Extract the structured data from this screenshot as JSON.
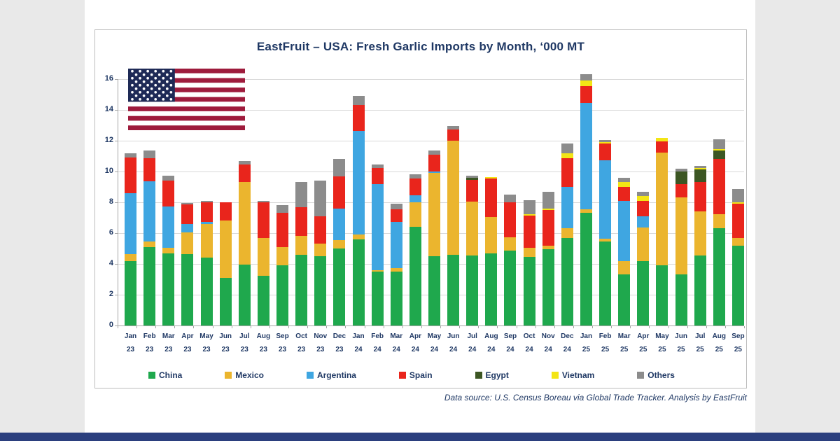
{
  "title": "EastFruit – USA: Fresh Garlic Imports by Month, ‘000 MT",
  "footer": "Data source: U.S. Census Boreau via Global Trade Tracker. Analysis by EastFruit",
  "colors": {
    "title_text": "#1F3864",
    "axis_text": "#1F3864",
    "gridline": "#D8D8D8",
    "frame_border": "#BDBDBD",
    "page_side": "#E9E9E9",
    "canvas": "#FFFFFF",
    "bottom_band": "#2B3F7E",
    "flag_red": "#9E1B3C",
    "flag_canton": "#1E2A56"
  },
  "chart_data": {
    "type": "bar",
    "stacked": true,
    "title": "EastFruit – USA: Fresh Garlic Imports by Month, ‘000 MT",
    "xlabel": "",
    "ylabel": "",
    "ylim": [
      0,
      16.5
    ],
    "y_ticks": [
      0,
      2,
      4,
      6,
      8,
      10,
      12,
      14,
      16
    ],
    "grid": true,
    "legend_position": "bottom",
    "categories": [
      "Jan 23",
      "Feb 23",
      "Mar 23",
      "Apr 23",
      "May 23",
      "Jun 23",
      "Jul 23",
      "Aug 23",
      "Sep 23",
      "Oct 23",
      "Nov 23",
      "Dec 23",
      "Jan 24",
      "Feb 24",
      "Mar 24",
      "Apr 24",
      "May 24",
      "Jun 24",
      "Jul 24",
      "Aug 24",
      "Sep 24",
      "Oct 24",
      "Nov 24",
      "Dec 24",
      "Jan 25",
      "Feb 25",
      "Mar 25",
      "Apr 25",
      "May 25",
      "Jun 25",
      "Jul 25",
      "Aug 25",
      "Sep 25"
    ],
    "series": [
      {
        "name": "China",
        "color": "#1FA84D",
        "values": [
          4.2,
          5.1,
          4.7,
          4.65,
          4.4,
          3.1,
          3.95,
          3.25,
          3.9,
          4.6,
          4.5,
          5.0,
          5.6,
          3.5,
          3.5,
          6.4,
          4.5,
          4.6,
          4.55,
          4.7,
          4.85,
          4.45,
          4.95,
          5.7,
          7.3,
          5.45,
          3.3,
          4.2,
          3.9,
          3.3,
          4.55,
          6.3,
          5.2
        ]
      },
      {
        "name": "Mexico",
        "color": "#EBB52E",
        "values": [
          0.45,
          0.35,
          0.35,
          1.4,
          2.2,
          3.7,
          5.35,
          2.45,
          1.2,
          1.2,
          0.8,
          0.55,
          0.3,
          0.1,
          0.25,
          1.6,
          5.4,
          7.4,
          3.5,
          2.35,
          0.9,
          0.6,
          0.25,
          0.6,
          0.25,
          0.2,
          0.9,
          2.15,
          7.35,
          5.0,
          2.85,
          0.95,
          0.5
        ]
      },
      {
        "name": "Argentina",
        "color": "#3FA6E1",
        "values": [
          3.95,
          3.9,
          2.7,
          0.55,
          0.15,
          0,
          0,
          0,
          0,
          0,
          0,
          2.05,
          6.75,
          5.6,
          3.0,
          0.45,
          0.1,
          0,
          0,
          0,
          0,
          0,
          0,
          2.7,
          6.9,
          5.1,
          3.9,
          0.75,
          0,
          0,
          0,
          0,
          0
        ]
      },
      {
        "name": "Spain",
        "color": "#E9251C",
        "values": [
          2.3,
          1.5,
          1.65,
          1.25,
          1.25,
          1.2,
          1.15,
          2.3,
          2.2,
          1.9,
          1.8,
          2.1,
          1.65,
          1.05,
          0.8,
          1.1,
          1.1,
          0.75,
          1.4,
          2.5,
          2.25,
          2.1,
          2.3,
          1.85,
          1.1,
          1.05,
          0.9,
          1.0,
          0.7,
          0.9,
          1.9,
          3.55,
          2.2
        ]
      },
      {
        "name": "Egypt",
        "color": "#3C5623",
        "values": [
          0,
          0,
          0,
          0,
          0,
          0,
          0,
          0,
          0,
          0,
          0,
          0,
          0,
          0,
          0,
          0,
          0,
          0,
          0.15,
          0,
          0,
          0,
          0,
          0,
          0,
          0,
          0,
          0,
          0,
          0.8,
          0.85,
          0.55,
          0
        ]
      },
      {
        "name": "Vietnam",
        "color": "#F3E515",
        "values": [
          0,
          0,
          0,
          0,
          0,
          0,
          0,
          0,
          0,
          0,
          0,
          0,
          0,
          0,
          0,
          0,
          0,
          0,
          0,
          0.1,
          0,
          0.1,
          0.1,
          0.35,
          0.35,
          0.1,
          0.3,
          0.3,
          0.25,
          0,
          0.1,
          0.1,
          0.1
        ]
      },
      {
        "name": "Others",
        "color": "#8C8C8C",
        "values": [
          0.3,
          0.5,
          0.35,
          0.1,
          0.1,
          0,
          0.25,
          0.1,
          0.5,
          1.6,
          2.3,
          1.1,
          0.6,
          0.2,
          0.35,
          0.25,
          0.25,
          0.2,
          0.15,
          0,
          0.5,
          0.9,
          1.1,
          0.6,
          0.4,
          0.15,
          0.3,
          0.3,
          0,
          0.2,
          0.1,
          0.65,
          0.85
        ]
      }
    ]
  }
}
